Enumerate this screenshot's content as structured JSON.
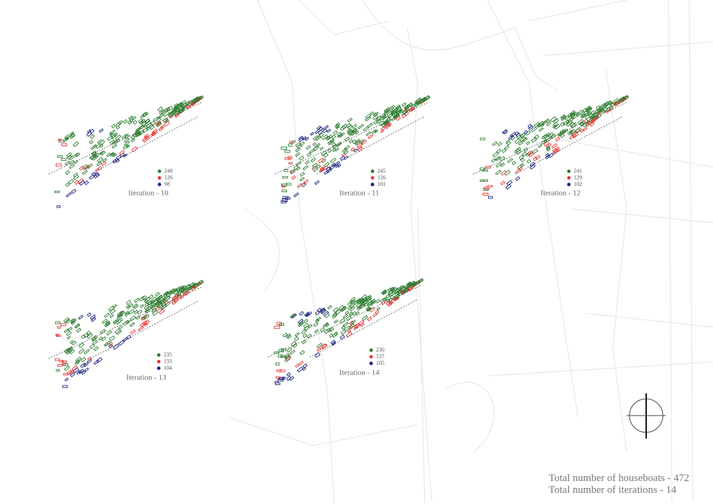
{
  "panels": [
    {
      "title": "Iteration - 10",
      "counts": [
        248,
        126,
        98
      ]
    },
    {
      "title": "Iteration - 11",
      "counts": [
        245,
        126,
        101
      ]
    },
    {
      "title": "Iteration - 12",
      "counts": [
        241,
        129,
        102
      ]
    },
    {
      "title": "Iteration - 13",
      "counts": [
        235,
        133,
        104
      ]
    },
    {
      "title": "Iteration - 14",
      "counts": [
        230,
        137,
        105
      ]
    }
  ],
  "footer": [
    "Total number of houseboats - 472",
    "Total number of iterations - 14"
  ]
}
